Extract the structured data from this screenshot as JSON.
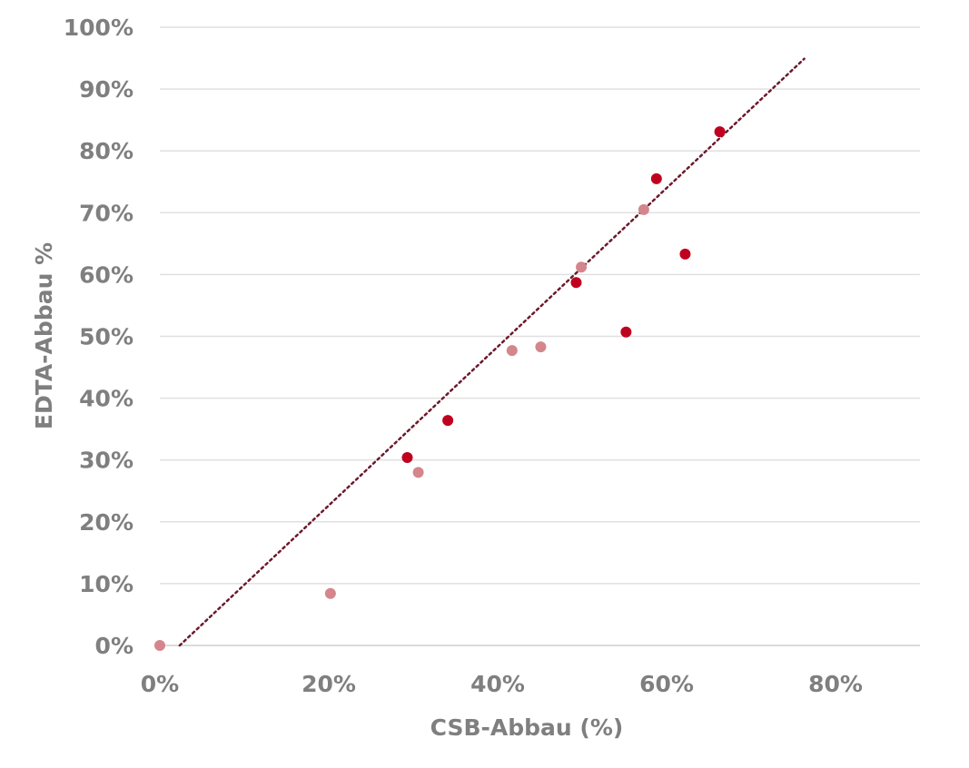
{
  "chart_data": {
    "type": "scatter",
    "title": "",
    "xlabel": "CSB-Abbau (%)",
    "ylabel": "EDTA-Abbau %",
    "xlim": [
      0,
      90
    ],
    "ylim": [
      0,
      100
    ],
    "x_ticks": [
      "0%",
      "20%",
      "40%",
      "60%",
      "80%"
    ],
    "x_tick_values": [
      0,
      20,
      40,
      60,
      80
    ],
    "y_ticks": [
      "0%",
      "10%",
      "20%",
      "30%",
      "40%",
      "50%",
      "60%",
      "70%",
      "80%",
      "90%",
      "100%"
    ],
    "y_tick_values": [
      0,
      10,
      20,
      30,
      40,
      50,
      60,
      70,
      80,
      90,
      100
    ],
    "grid": "horizontal",
    "series": [
      {
        "color": "#D4868C",
        "points": [
          [
            0,
            0
          ],
          [
            20.2,
            8.4
          ],
          [
            30.6,
            28.0
          ],
          [
            41.7,
            47.7
          ],
          [
            45.1,
            48.3
          ],
          [
            49.9,
            61.2
          ],
          [
            57.3,
            70.5
          ]
        ]
      },
      {
        "color": "#C0001F",
        "points": [
          [
            29.3,
            30.4
          ],
          [
            34.1,
            36.4
          ],
          [
            49.3,
            58.7
          ],
          [
            55.2,
            50.7
          ],
          [
            58.8,
            75.5
          ],
          [
            62.2,
            63.3
          ],
          [
            66.3,
            83.1
          ]
        ]
      }
    ],
    "trendline": {
      "color": "#6B1A2A",
      "style": "dotted",
      "from": [
        2.35,
        0
      ],
      "to": [
        76.3,
        94.9
      ]
    }
  }
}
